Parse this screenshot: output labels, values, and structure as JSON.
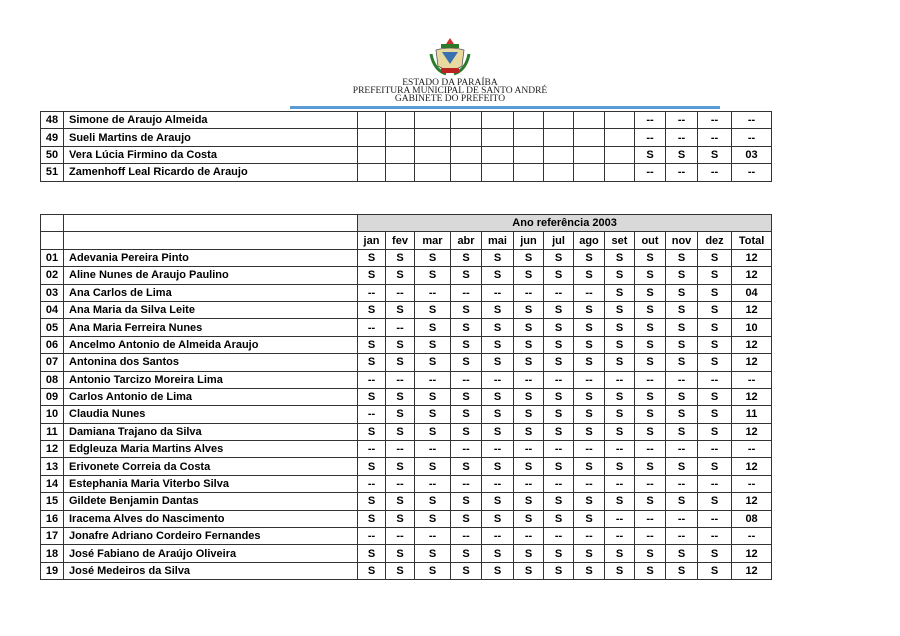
{
  "header": {
    "state": "ESTADO DA PARAÍBA",
    "city": "PREFEITURA MUNICIPAL DE SANTO ANDRÉ",
    "office": "GABINETE DO PREFEITO"
  },
  "table_1": {
    "rows": [
      [
        "48",
        "Simone de Araujo Almeida",
        "--",
        "--",
        "--",
        "--"
      ],
      [
        "49",
        "Sueli Martins de Araujo",
        "--",
        "--",
        "--",
        "--"
      ],
      [
        "50",
        "Vera Lúcia Firmino da Costa",
        "S",
        "S",
        "S",
        "03"
      ],
      [
        "51",
        "Zamenhoff Leal Ricardo de Araujo",
        "--",
        "--",
        "--",
        "--"
      ]
    ]
  },
  "table_2": {
    "title": "Ano referência 2003",
    "columns": [
      "jan",
      "fev",
      "mar",
      "abr",
      "mai",
      "jun",
      "jul",
      "ago",
      "set",
      "out",
      "nov",
      "dez",
      "Total"
    ],
    "rows": [
      [
        "01",
        "Adevania Pereira Pinto",
        "S",
        "S",
        "S",
        "S",
        "S",
        "S",
        "S",
        "S",
        "S",
        "S",
        "S",
        "S",
        "12"
      ],
      [
        "02",
        "Aline Nunes de Araujo Paulino",
        "S",
        "S",
        "S",
        "S",
        "S",
        "S",
        "S",
        "S",
        "S",
        "S",
        "S",
        "S",
        "12"
      ],
      [
        "03",
        "Ana Carlos de Lima",
        "--",
        "--",
        "--",
        "--",
        "--",
        "--",
        "--",
        "--",
        "S",
        "S",
        "S",
        "S",
        "04"
      ],
      [
        "04",
        "Ana Maria da Silva Leite",
        "S",
        "S",
        "S",
        "S",
        "S",
        "S",
        "S",
        "S",
        "S",
        "S",
        "S",
        "S",
        "12"
      ],
      [
        "05",
        "Ana Maria Ferreira Nunes",
        "--",
        "--",
        "S",
        "S",
        "S",
        "S",
        "S",
        "S",
        "S",
        "S",
        "S",
        "S",
        "10"
      ],
      [
        "06",
        "Ancelmo Antonio de Almeida Araujo",
        "S",
        "S",
        "S",
        "S",
        "S",
        "S",
        "S",
        "S",
        "S",
        "S",
        "S",
        "S",
        "12"
      ],
      [
        "07",
        "Antonina dos Santos",
        "S",
        "S",
        "S",
        "S",
        "S",
        "S",
        "S",
        "S",
        "S",
        "S",
        "S",
        "S",
        "12"
      ],
      [
        "08",
        "Antonio Tarcizo Moreira Lima",
        "--",
        "--",
        "--",
        "--",
        "--",
        "--",
        "--",
        "--",
        "--",
        "--",
        "--",
        "--",
        "--"
      ],
      [
        "09",
        "Carlos Antonio de Lima",
        "S",
        "S",
        "S",
        "S",
        "S",
        "S",
        "S",
        "S",
        "S",
        "S",
        "S",
        "S",
        "12"
      ],
      [
        "10",
        "Claudia Nunes",
        "--",
        "S",
        "S",
        "S",
        "S",
        "S",
        "S",
        "S",
        "S",
        "S",
        "S",
        "S",
        "11"
      ],
      [
        "11",
        "Damiana Trajano da Silva",
        "S",
        "S",
        "S",
        "S",
        "S",
        "S",
        "S",
        "S",
        "S",
        "S",
        "S",
        "S",
        "12"
      ],
      [
        "12",
        "Edgleuza Maria Martins Alves",
        "--",
        "--",
        "--",
        "--",
        "--",
        "--",
        "--",
        "--",
        "--",
        "--",
        "--",
        "--",
        "--"
      ],
      [
        "13",
        "Erivonete Correia da Costa",
        "S",
        "S",
        "S",
        "S",
        "S",
        "S",
        "S",
        "S",
        "S",
        "S",
        "S",
        "S",
        "12"
      ],
      [
        "14",
        "Estephania Maria Viterbo Silva",
        "--",
        "--",
        "--",
        "--",
        "--",
        "--",
        "--",
        "--",
        "--",
        "--",
        "--",
        "--",
        "--"
      ],
      [
        "15",
        "Gildete Benjamin Dantas",
        "S",
        "S",
        "S",
        "S",
        "S",
        "S",
        "S",
        "S",
        "S",
        "S",
        "S",
        "S",
        "12"
      ],
      [
        "16",
        "Iracema Alves do Nascimento",
        "S",
        "S",
        "S",
        "S",
        "S",
        "S",
        "S",
        "S",
        "--",
        "--",
        "--",
        "--",
        "08"
      ],
      [
        "17",
        "Jonafre Adriano Cordeiro Fernandes",
        "--",
        "--",
        "--",
        "--",
        "--",
        "--",
        "--",
        "--",
        "--",
        "--",
        "--",
        "--",
        "--"
      ],
      [
        "18",
        "José Fabiano de Araújo Oliveira",
        "S",
        "S",
        "S",
        "S",
        "S",
        "S",
        "S",
        "S",
        "S",
        "S",
        "S",
        "S",
        "12"
      ],
      [
        "19",
        "José Medeiros da Silva",
        "S",
        "S",
        "S",
        "S",
        "S",
        "S",
        "S",
        "S",
        "S",
        "S",
        "S",
        "S",
        "12"
      ]
    ]
  }
}
